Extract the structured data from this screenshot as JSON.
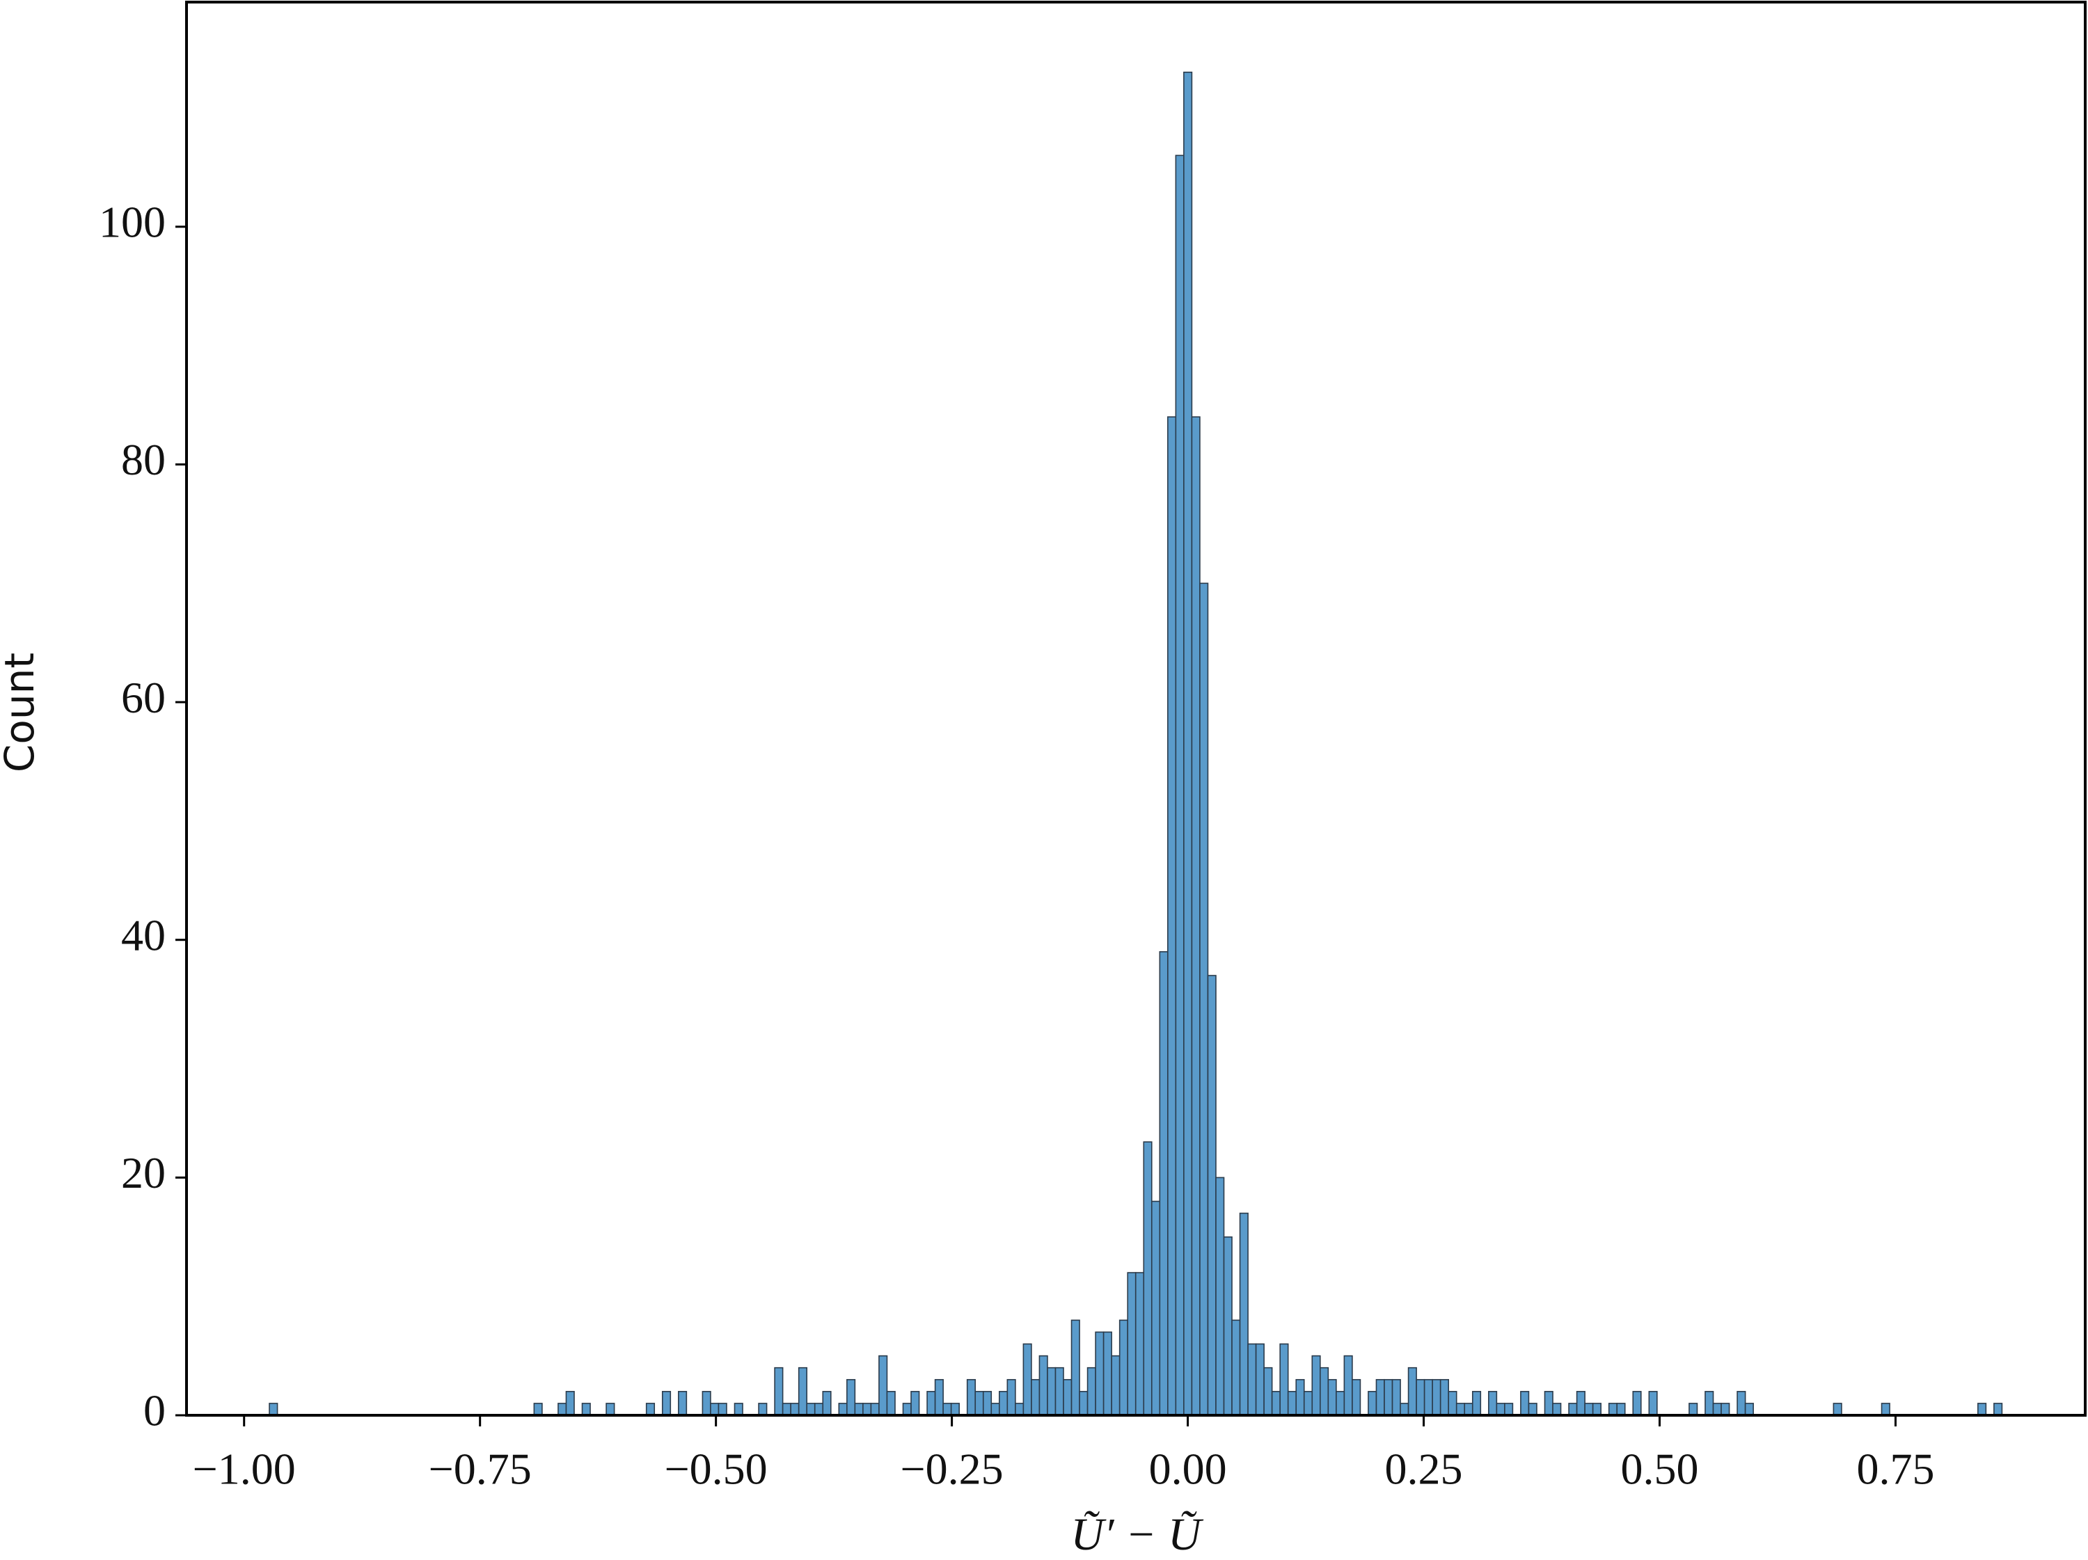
{
  "chart_data": {
    "type": "histogram",
    "xlabel": "Ũ′ − Ũ",
    "ylabel": "Count",
    "color": "#5a9bcb",
    "edgecolor": "#2b3b4b",
    "xlim": [
      -1.061,
      0.951
    ],
    "ylim": [
      0,
      118.9
    ],
    "xticks": [
      {
        "value": -1.0,
        "label": "−1.00"
      },
      {
        "value": -0.75,
        "label": "−0.75"
      },
      {
        "value": -0.5,
        "label": "−0.50"
      },
      {
        "value": -0.25,
        "label": "−0.25"
      },
      {
        "value": 0.0,
        "label": "0.00"
      },
      {
        "value": 0.25,
        "label": "0.25"
      },
      {
        "value": 0.5,
        "label": "0.50"
      },
      {
        "value": 0.75,
        "label": "0.75"
      }
    ],
    "yticks": [
      0,
      20,
      40,
      60,
      80,
      100
    ],
    "bins": [
      -0.9732,
      -0.9647,
      -0.9562,
      -0.9477,
      -0.9392,
      -0.9307,
      -0.9222,
      -0.9137,
      -0.9052,
      -0.8967,
      -0.8882,
      -0.8797,
      -0.8712,
      -0.8627,
      -0.8542,
      -0.8457,
      -0.8372,
      -0.8287,
      -0.8202,
      -0.8117,
      -0.8032,
      -0.7947,
      -0.7862,
      -0.7777,
      -0.7692,
      -0.7607,
      -0.7522,
      -0.7437,
      -0.7352,
      -0.7267,
      -0.7182,
      -0.7097,
      -0.7012,
      -0.6927,
      -0.6842,
      -0.6757,
      -0.6672,
      -0.6587,
      -0.6502,
      -0.6417,
      -0.6332,
      -0.6247,
      -0.6162,
      -0.6077,
      -0.5992,
      -0.5907,
      -0.5822,
      -0.5737,
      -0.5652,
      -0.5567,
      -0.5482,
      -0.5397,
      -0.5312,
      -0.5227,
      -0.5142,
      -0.5057,
      -0.4972,
      -0.4887,
      -0.4802,
      -0.4717,
      -0.4632,
      -0.4547,
      -0.4462,
      -0.4377,
      -0.4292,
      -0.4207,
      -0.4122,
      -0.4037,
      -0.3952,
      -0.3867,
      -0.3782,
      -0.3697,
      -0.3612,
      -0.3527,
      -0.3442,
      -0.3357,
      -0.3272,
      -0.3187,
      -0.3102,
      -0.3017,
      -0.2932,
      -0.2847,
      -0.2762,
      -0.2677,
      -0.2592,
      -0.2507,
      -0.2422,
      -0.2337,
      -0.2252,
      -0.2167,
      -0.2082,
      -0.1997,
      -0.1912,
      -0.1827,
      -0.1742,
      -0.1657,
      -0.1572,
      -0.1487,
      -0.1402,
      -0.1317,
      -0.1232,
      -0.1147,
      -0.1062,
      -0.0977,
      -0.0892,
      -0.0807,
      -0.0722,
      -0.0637,
      -0.0552,
      -0.0467,
      -0.0382,
      -0.0297,
      -0.0212,
      -0.0127,
      -0.0042,
      0.0043,
      0.0128,
      0.0213,
      0.0298,
      0.0383,
      0.0468,
      0.0553,
      0.0638,
      0.0723,
      0.0808,
      0.0893,
      0.0978,
      0.1063,
      0.1148,
      0.1233,
      0.1318,
      0.1403,
      0.1488,
      0.1573,
      0.1658,
      0.1743,
      0.1828,
      0.1913,
      0.1998,
      0.2083,
      0.2168,
      0.2253,
      0.2338,
      0.2423,
      0.2508,
      0.2593,
      0.2678,
      0.2763,
      0.2848,
      0.2933,
      0.3018,
      0.3103,
      0.3188,
      0.3273,
      0.3358,
      0.3443,
      0.3528,
      0.3613,
      0.3698,
      0.3783,
      0.3868,
      0.3953,
      0.4038,
      0.4123,
      0.4208,
      0.4293,
      0.4378,
      0.4463,
      0.4548,
      0.4633,
      0.4718,
      0.4803,
      0.4888,
      0.4973,
      0.5058,
      0.5143,
      0.5228,
      0.5313,
      0.5398,
      0.5483,
      0.5568,
      0.5653,
      0.5738,
      0.5823,
      0.5908,
      0.5993,
      0.6078,
      0.6163,
      0.6248,
      0.6333,
      0.6418,
      0.6503,
      0.6588,
      0.6673,
      0.6758,
      0.6843,
      0.6928,
      0.7013,
      0.7098,
      0.7183,
      0.7268,
      0.7353,
      0.7438,
      0.7523,
      0.7608,
      0.7693,
      0.7778,
      0.7863,
      0.7948,
      0.8033,
      0.8118,
      0.8203,
      0.8288,
      0.8373,
      0.8458,
      0.8543,
      0.8628
    ],
    "values": [
      1,
      0,
      0,
      0,
      0,
      0,
      0,
      0,
      0,
      0,
      0,
      0,
      0,
      0,
      0,
      0,
      0,
      0,
      0,
      0,
      0,
      0,
      0,
      0,
      0,
      0,
      0,
      0,
      0,
      0,
      0,
      0,
      0,
      1,
      0,
      0,
      1,
      2,
      0,
      1,
      0,
      0,
      1,
      0,
      0,
      0,
      0,
      1,
      0,
      2,
      0,
      2,
      0,
      0,
      2,
      1,
      1,
      0,
      1,
      0,
      0,
      1,
      0,
      4,
      1,
      1,
      4,
      1,
      1,
      2,
      0,
      1,
      3,
      1,
      1,
      1,
      5,
      2,
      0,
      1,
      2,
      0,
      2,
      3,
      1,
      1,
      0,
      3,
      2,
      2,
      1,
      2,
      3,
      1,
      6,
      3,
      5,
      4,
      4,
      3,
      8,
      2,
      4,
      7,
      7,
      5,
      8,
      12,
      12,
      23,
      18,
      39,
      84,
      106,
      113,
      84,
      70,
      37,
      20,
      15,
      8,
      17,
      6,
      6,
      4,
      2,
      6,
      2,
      3,
      2,
      5,
      4,
      3,
      2,
      5,
      3,
      0,
      2,
      3,
      3,
      3,
      1,
      4,
      3,
      3,
      3,
      3,
      2,
      1,
      1,
      2,
      0,
      2,
      1,
      1,
      0,
      2,
      1,
      0,
      2,
      1,
      0,
      1,
      2,
      1,
      1,
      0,
      1,
      1,
      0,
      2,
      0,
      2,
      0,
      0,
      0,
      0,
      1,
      0,
      2,
      1,
      1,
      0,
      2,
      1,
      0,
      0,
      0,
      0,
      0,
      0,
      0,
      0,
      0,
      0,
      1,
      0,
      0,
      0,
      0,
      0,
      1,
      0,
      0,
      0,
      0,
      0,
      0,
      0,
      0,
      0,
      0,
      0,
      1,
      0,
      1
    ]
  }
}
